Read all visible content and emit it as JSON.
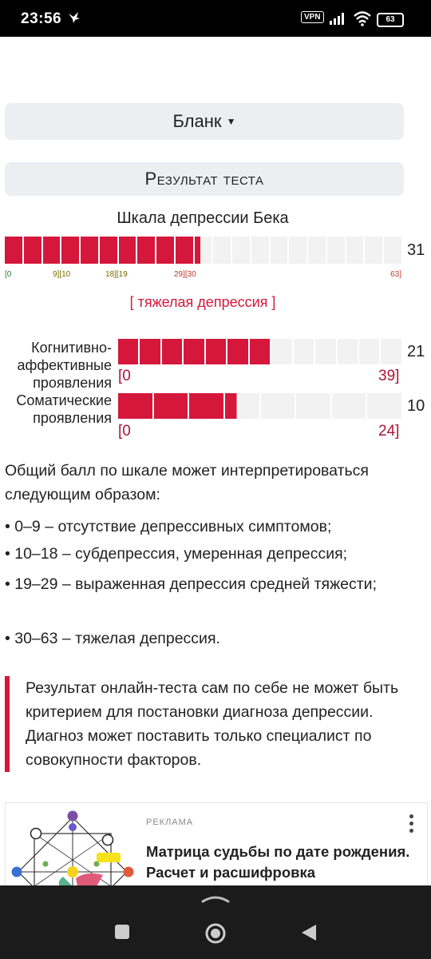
{
  "status": {
    "time": "23:56",
    "vpn": "VPN",
    "battery": "63"
  },
  "blank_label": "Бланк",
  "result_header": "Результат теста",
  "scale": {
    "title": "Шкала депрессии Бека",
    "score": "31",
    "filled": 31,
    "max": 63,
    "ticks": [
      "[0",
      "9][10",
      "18][19",
      "29][30",
      "63]"
    ],
    "verdict": "[ тяжелая депрессия ]"
  },
  "cognitive": {
    "label_lines": [
      "Когнитивно-",
      "аффективные",
      "проявления"
    ],
    "score": "21",
    "filled": 21,
    "max": 39,
    "range_min": "[0",
    "range_max": "39]"
  },
  "somatic": {
    "label_lines": [
      "Соматические",
      "проявления"
    ],
    "score": "10",
    "filled": 10,
    "max": 24,
    "range_min": "[0",
    "range_max": "24]"
  },
  "interpretation": {
    "intro": "Общий балл по шкале может интерпретироваться следующим образом:",
    "items": [
      "• 0–9 – отсутствие депрессивных симптомов;",
      "• 10–18 – субдепрессия, умеренная депрессия;",
      "• 19–29 – выраженная депрессия средней тяжести;",
      "• 30–63 – тяжелая депрессия."
    ]
  },
  "notice": "Результат онлайн-теста сам по себе не может быть критерием для постановки диагноза депрессии. Диагноз может поставить только специалист по совокупности факторов.",
  "ad": {
    "label": "РЕКЛАМА",
    "title": "Матрица судьбы по дате рождения. Расчет и расшифровка"
  },
  "colors": {
    "accent": "#d5173c",
    "button_bg": "#eceef2",
    "empty_cell": "#f2f2f2"
  },
  "icons": [
    "bird-icon",
    "signal-icon",
    "wifi-icon",
    "battery-icon",
    "caret-down-icon",
    "more-vert-icon",
    "back-icon",
    "home-icon",
    "recents-icon",
    "chevron-up-icon"
  ]
}
